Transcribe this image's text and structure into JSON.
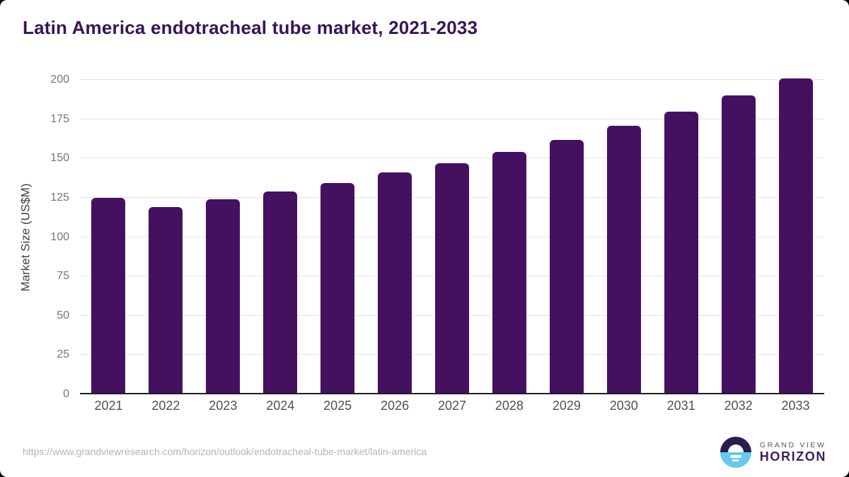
{
  "header": {
    "title": "Latin America endotracheal tube market, 2021-2033"
  },
  "chart_data": {
    "type": "bar",
    "title": "Latin America endotracheal tube market, 2021-2033",
    "categories": [
      "2021",
      "2022",
      "2023",
      "2024",
      "2025",
      "2026",
      "2027",
      "2028",
      "2029",
      "2030",
      "2031",
      "2032",
      "2033"
    ],
    "values": [
      125,
      119,
      124,
      129,
      134.5,
      141,
      147,
      154,
      162,
      171,
      180,
      190,
      201
    ],
    "xlabel": "",
    "ylabel": "Market Size (US$M)",
    "ylim": [
      0,
      200
    ],
    "yticks": [
      0,
      25,
      50,
      75,
      100,
      125,
      150,
      175,
      200
    ],
    "grid": "horizontal",
    "legend": "none",
    "bar_color": "#45105f"
  },
  "footer": {
    "source_url": "https://www.grandviewresearch.com/horizon/outlook/endotracheal-tube-market/latin-america",
    "logo": {
      "brand_line1": "GRAND VIEW",
      "brand_line2": "HORIZON",
      "icon_top_color": "#2d1d4e",
      "icon_bottom_color": "#67c8f0"
    }
  },
  "colors": {
    "title": "#3a1456",
    "bar": "#45105f",
    "gridline": "#e6e6e9",
    "baseline": "#1f1f26",
    "y_tick_label": "#76767c",
    "x_tick_label": "#4f4f56",
    "axis_label": "#3f3f46",
    "footer_url": "#b4b4b9"
  }
}
